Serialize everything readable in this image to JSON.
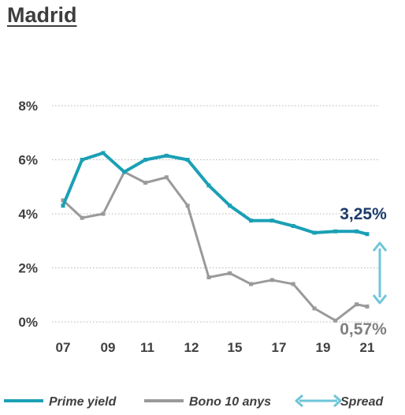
{
  "title": "Madrid",
  "chart_data": {
    "type": "line",
    "title": "Madrid",
    "y_tick_labels": [
      "0%",
      "2%",
      "4%",
      "6%",
      "8%"
    ],
    "x_tick_labels": [
      "07",
      "09",
      "11",
      "12",
      "15",
      "17",
      "19",
      "21"
    ],
    "ylim": [
      0,
      8
    ],
    "grid": "horizontal dotted",
    "x": [
      2006.6,
      2007.5,
      2008.5,
      2009.5,
      2010.5,
      2011.5,
      2012.5,
      2013.5,
      2014.5,
      2015.5,
      2016.5,
      2017.5,
      2018.5,
      2019.5,
      2020.5,
      2021.0
    ],
    "series": [
      {
        "name": "Prime yield",
        "color": "#1aa0b5",
        "values": [
          4.3,
          6.0,
          6.25,
          5.55,
          6.0,
          6.15,
          6.0,
          5.05,
          4.3,
          3.75,
          3.75,
          3.55,
          3.3,
          3.35,
          3.35,
          3.25
        ]
      },
      {
        "name": "Bono 10 anys",
        "color": "#9a9a9a",
        "values": [
          4.5,
          3.85,
          4.0,
          5.55,
          5.15,
          5.35,
          4.3,
          1.65,
          1.8,
          1.4,
          1.55,
          1.4,
          0.5,
          0.05,
          0.65,
          0.57
        ]
      }
    ],
    "annotations": {
      "prime_end": "3,25%",
      "bono_end": "0,57%",
      "prime_end_color": "#1b3a6b",
      "bono_end_color": "#808080"
    },
    "legend": {
      "position": "bottom",
      "items": [
        {
          "label": "Prime yield",
          "color": "#1aa0b5",
          "kind": "line"
        },
        {
          "label": "Bono 10 anys",
          "color": "#9a9a9a",
          "kind": "line"
        },
        {
          "label": "Spread",
          "color": "#6ec6d8",
          "kind": "double-arrow"
        }
      ]
    }
  }
}
